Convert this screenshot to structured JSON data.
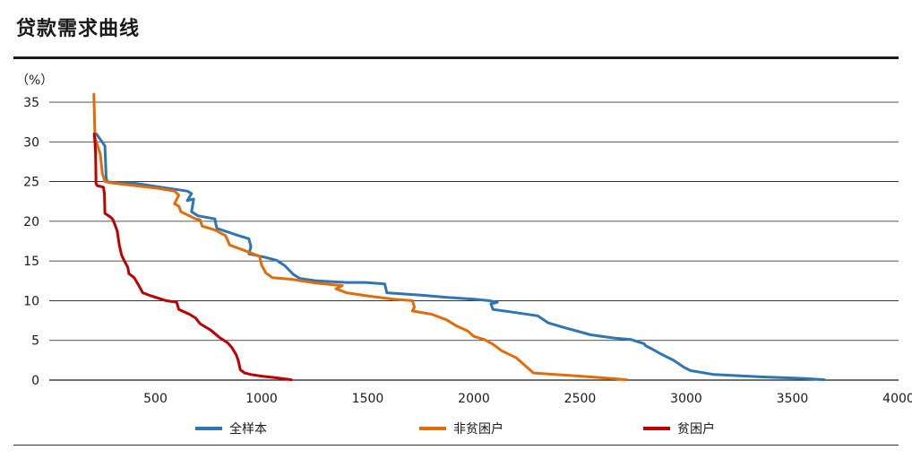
{
  "title": "贷款需求曲线",
  "chart_data": {
    "type": "line",
    "title": "贷款需求曲线",
    "ylabel": "（%）",
    "xlabel": "",
    "xlim": [
      0,
      4000
    ],
    "ylim": [
      0,
      35
    ],
    "xticks": [
      "500",
      "1000",
      "1500",
      "2000",
      "2500",
      "3000",
      "3500",
      "4000"
    ],
    "yticks": [
      "0",
      "5",
      "10",
      "15",
      "20",
      "25",
      "30",
      "35"
    ],
    "legend_position": "bottom",
    "series": [
      {
        "name": "全样本",
        "color": "#2e75b6",
        "points": [
          [
            222,
            31
          ],
          [
            262,
            29.5
          ],
          [
            268,
            25.5
          ],
          [
            272,
            25
          ],
          [
            320,
            24.8
          ],
          [
            400,
            24.8
          ],
          [
            450,
            24.6
          ],
          [
            550,
            24.2
          ],
          [
            650,
            23.8
          ],
          [
            670,
            23.5
          ],
          [
            650,
            22.6
          ],
          [
            680,
            22.8
          ],
          [
            670,
            21.2
          ],
          [
            700,
            20.7
          ],
          [
            780,
            20.3
          ],
          [
            785,
            19.6
          ],
          [
            790,
            19.1
          ],
          [
            880,
            18.3
          ],
          [
            940,
            17.8
          ],
          [
            950,
            16.8
          ],
          [
            940,
            15.9
          ],
          [
            1010,
            15.5
          ],
          [
            1070,
            15.1
          ],
          [
            1110,
            14.4
          ],
          [
            1150,
            13.3
          ],
          [
            1180,
            12.8
          ],
          [
            1260,
            12.5
          ],
          [
            1400,
            12.3
          ],
          [
            1490,
            12.3
          ],
          [
            1580,
            12.1
          ],
          [
            1590,
            11
          ],
          [
            1750,
            10.7
          ],
          [
            1880,
            10.4
          ],
          [
            2000,
            10.2
          ],
          [
            2070,
            10
          ],
          [
            2110,
            9.8
          ],
          [
            2080,
            9.6
          ],
          [
            2090,
            8.9
          ],
          [
            2170,
            8.6
          ],
          [
            2300,
            8.1
          ],
          [
            2350,
            7.2
          ],
          [
            2440,
            6.5
          ],
          [
            2550,
            5.7
          ],
          [
            2660,
            5.3
          ],
          [
            2740,
            5.1
          ],
          [
            2800,
            4.6
          ],
          [
            2810,
            4.3
          ],
          [
            2840,
            3.9
          ],
          [
            2880,
            3.3
          ],
          [
            2940,
            2.5
          ],
          [
            2990,
            1.6
          ],
          [
            3020,
            1.2
          ],
          [
            3130,
            0.7
          ],
          [
            3360,
            0.4
          ],
          [
            3560,
            0.2
          ],
          [
            3650,
            0.05
          ]
        ]
      },
      {
        "name": "非贫困户",
        "color": "#e36c09",
        "points": [
          [
            210,
            36
          ],
          [
            215,
            30.5
          ],
          [
            240,
            28.5
          ],
          [
            250,
            26
          ],
          [
            262,
            25
          ],
          [
            300,
            24.8
          ],
          [
            400,
            24.5
          ],
          [
            500,
            24.2
          ],
          [
            590,
            23.8
          ],
          [
            610,
            23.3
          ],
          [
            590,
            22.2
          ],
          [
            610,
            21.9
          ],
          [
            620,
            21.2
          ],
          [
            690,
            20.3
          ],
          [
            710,
            20.2
          ],
          [
            720,
            19.4
          ],
          [
            780,
            18.9
          ],
          [
            830,
            18.2
          ],
          [
            850,
            17
          ],
          [
            910,
            16.4
          ],
          [
            990,
            15.6
          ],
          [
            1000,
            14.5
          ],
          [
            1020,
            13.5
          ],
          [
            1050,
            12.9
          ],
          [
            1140,
            12.7
          ],
          [
            1260,
            12.2
          ],
          [
            1380,
            11.9
          ],
          [
            1350,
            11.5
          ],
          [
            1400,
            11
          ],
          [
            1500,
            10.6
          ],
          [
            1620,
            10.2
          ],
          [
            1710,
            10
          ],
          [
            1720,
            9.2
          ],
          [
            1710,
            8.7
          ],
          [
            1800,
            8.3
          ],
          [
            1870,
            7.6
          ],
          [
            1920,
            6.8
          ],
          [
            1970,
            6.2
          ],
          [
            2000,
            5.5
          ],
          [
            2050,
            5.1
          ],
          [
            2090,
            4.5
          ],
          [
            2130,
            3.7
          ],
          [
            2200,
            2.8
          ],
          [
            2250,
            1.6
          ],
          [
            2280,
            0.9
          ],
          [
            2330,
            0.8
          ],
          [
            2500,
            0.5
          ],
          [
            2650,
            0.2
          ],
          [
            2720,
            0.05
          ]
        ]
      },
      {
        "name": "贫困户",
        "color": "#c00000",
        "points": [
          [
            212,
            31
          ],
          [
            215,
            30
          ],
          [
            218,
            28.5
          ],
          [
            220,
            25.5
          ],
          [
            220,
            24.8
          ],
          [
            225,
            24.5
          ],
          [
            255,
            24.3
          ],
          [
            260,
            23.5
          ],
          [
            262,
            21
          ],
          [
            290,
            20.5
          ],
          [
            300,
            20.2
          ],
          [
            310,
            19.5
          ],
          [
            320,
            18.8
          ],
          [
            330,
            17
          ],
          [
            340,
            15.8
          ],
          [
            350,
            15.2
          ],
          [
            370,
            14.2
          ],
          [
            375,
            13.4
          ],
          [
            400,
            12.9
          ],
          [
            420,
            12
          ],
          [
            440,
            11
          ],
          [
            480,
            10.6
          ],
          [
            550,
            10
          ],
          [
            600,
            9.8
          ],
          [
            610,
            8.9
          ],
          [
            660,
            8.3
          ],
          [
            690,
            7.8
          ],
          [
            710,
            7.1
          ],
          [
            760,
            6.3
          ],
          [
            800,
            5.4
          ],
          [
            840,
            4.7
          ],
          [
            860,
            4.1
          ],
          [
            880,
            3.2
          ],
          [
            890,
            2.5
          ],
          [
            900,
            1.3
          ],
          [
            920,
            0.9
          ],
          [
            950,
            0.7
          ],
          [
            1000,
            0.5
          ],
          [
            1080,
            0.25
          ],
          [
            1140,
            0.05
          ]
        ]
      }
    ]
  }
}
